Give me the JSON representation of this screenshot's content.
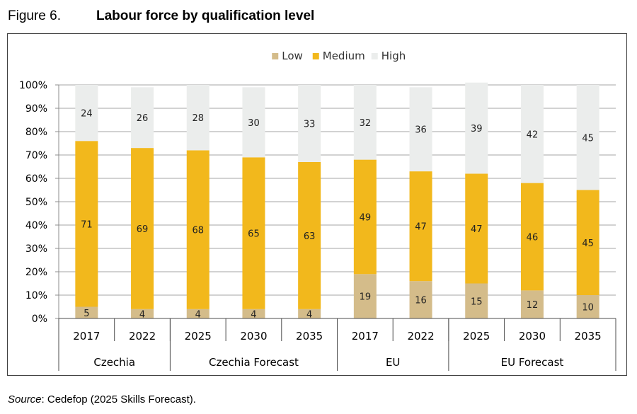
{
  "figure": {
    "label": "Figure 6.",
    "title": "Labour force by qualification level"
  },
  "source": {
    "label": "Source",
    "text": ": Cedefop (2025 Skills Forecast)."
  },
  "colors": {
    "Low": "#d4bc8a",
    "Medium": "#f2b81c",
    "High": "#ebedec"
  },
  "chart_data": {
    "type": "bar",
    "stacked": true,
    "title": "",
    "xlabel": "",
    "ylabel": "",
    "ylim": [
      0,
      100
    ],
    "y_ticks": [
      "0%",
      "10%",
      "20%",
      "30%",
      "40%",
      "50%",
      "60%",
      "70%",
      "80%",
      "90%",
      "100%"
    ],
    "grid": true,
    "legend_position": "top-center",
    "groups": [
      {
        "label": "Czechia",
        "size": 2
      },
      {
        "label": "Czechia Forecast",
        "size": 3
      },
      {
        "label": "EU",
        "size": 2
      },
      {
        "label": "EU Forecast",
        "size": 3
      }
    ],
    "categories": [
      "2017",
      "2022",
      "2025",
      "2030",
      "2035",
      "2017",
      "2022",
      "2025",
      "2030",
      "2035"
    ],
    "series": [
      {
        "name": "Low",
        "values": [
          5,
          4,
          4,
          4,
          4,
          19,
          16,
          15,
          12,
          10
        ]
      },
      {
        "name": "Medium",
        "values": [
          71,
          69,
          68,
          65,
          63,
          49,
          47,
          47,
          46,
          45
        ]
      },
      {
        "name": "High",
        "values": [
          24,
          26,
          28,
          30,
          33,
          32,
          36,
          39,
          42,
          45
        ]
      }
    ]
  }
}
